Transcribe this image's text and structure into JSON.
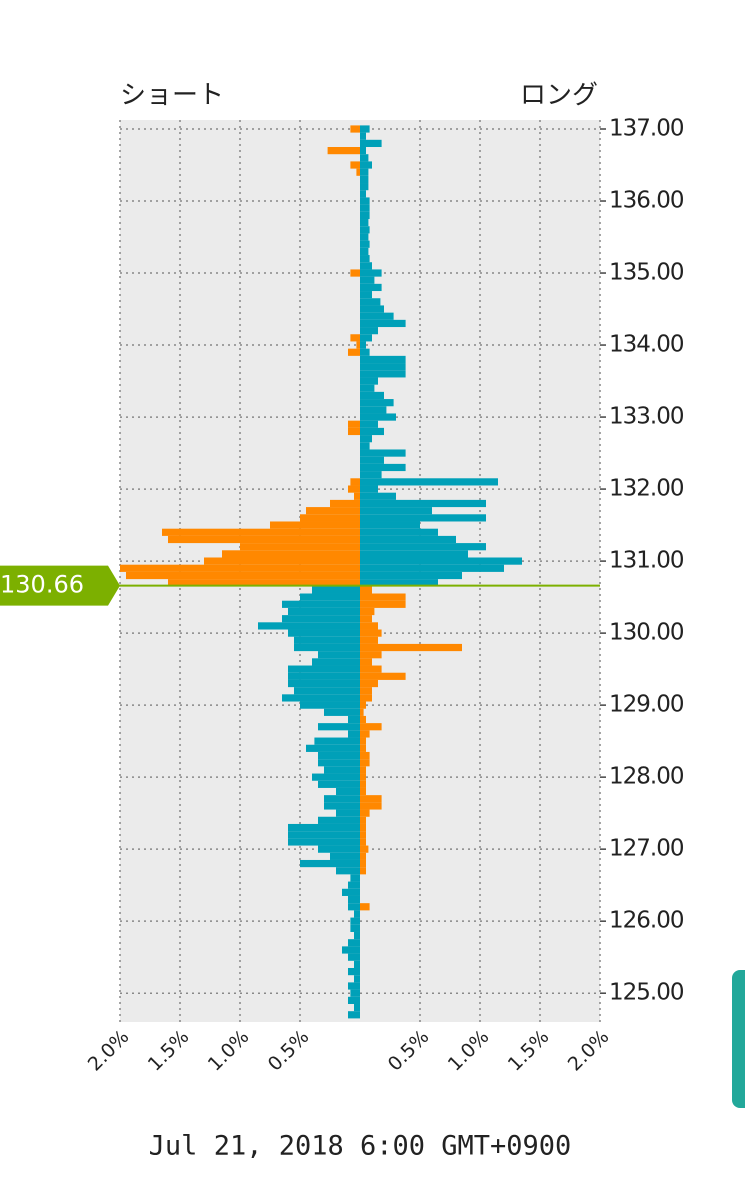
{
  "chart_data": {
    "type": "position-book",
    "left_label": "ショート",
    "right_label": "ロング",
    "footer": "Jul 21, 2018 6:00 GMT+0900",
    "current_price": 130.66,
    "price_colors": {
      "above_short": "#ff8800",
      "above_long": "#00a0b8",
      "below_short": "#00a0b8",
      "below_long": "#ff8800"
    },
    "line_color": "#7cb000",
    "bucket": 0.1,
    "y": [
      137.0,
      136.9,
      136.8,
      136.7,
      136.6,
      136.5,
      136.4,
      136.3,
      136.2,
      136.1,
      136.0,
      135.9,
      135.8,
      135.7,
      135.6,
      135.5,
      135.4,
      135.3,
      135.2,
      135.1,
      135.0,
      134.9,
      134.8,
      134.7,
      134.6,
      134.5,
      134.4,
      134.3,
      134.2,
      134.1,
      134.0,
      133.9,
      133.8,
      133.7,
      133.6,
      133.5,
      133.4,
      133.3,
      133.2,
      133.1,
      133.0,
      132.9,
      132.8,
      132.7,
      132.6,
      132.5,
      132.4,
      132.3,
      132.2,
      132.1,
      132.0,
      131.9,
      131.8,
      131.7,
      131.6,
      131.5,
      131.4,
      131.3,
      131.2,
      131.1,
      131.0,
      130.9,
      130.8,
      130.7,
      130.6,
      130.5,
      130.4,
      130.3,
      130.2,
      130.1,
      130.0,
      129.9,
      129.8,
      129.7,
      129.6,
      129.5,
      129.4,
      129.3,
      129.2,
      129.1,
      129.0,
      128.9,
      128.8,
      128.7,
      128.6,
      128.5,
      128.4,
      128.3,
      128.2,
      128.1,
      128.0,
      127.9,
      127.8,
      127.7,
      127.6,
      127.5,
      127.4,
      127.3,
      127.2,
      127.1,
      127.0,
      126.9,
      126.8,
      126.7,
      126.6,
      126.5,
      126.4,
      126.3,
      126.2,
      126.1,
      126.0,
      125.9,
      125.8,
      125.7,
      125.6,
      125.5,
      125.4,
      125.3,
      125.2,
      125.1,
      125.0,
      124.9,
      124.8,
      124.7
    ],
    "series": [
      {
        "name": "ショート",
        "side": "left",
        "values": [
          0.08,
          0,
          0,
          0.27,
          0,
          0.08,
          0.03,
          0,
          0,
          0,
          0,
          0,
          0,
          0,
          0,
          0,
          0,
          0,
          0,
          0,
          0.08,
          0,
          0,
          0,
          0,
          0,
          0,
          0,
          0,
          0.08,
          0.03,
          0.1,
          0,
          0,
          0,
          0,
          0,
          0,
          0,
          0,
          0,
          0.1,
          0.1,
          0,
          0,
          0,
          0,
          0,
          0,
          0.08,
          0.1,
          0.05,
          0.25,
          0.45,
          0.5,
          0.75,
          1.65,
          1.6,
          1.0,
          1.15,
          1.3,
          2.0,
          1.95,
          1.6,
          0.4,
          0.5,
          0.65,
          0.6,
          0.65,
          0.85,
          0.6,
          0.55,
          0.55,
          0.35,
          0.4,
          0.6,
          0.6,
          0.6,
          0.55,
          0.65,
          0.5,
          0.3,
          0.1,
          0.35,
          0.1,
          0.38,
          0.45,
          0.35,
          0.35,
          0.3,
          0.4,
          0.35,
          0.2,
          0.3,
          0.3,
          0.2,
          0.35,
          0.6,
          0.6,
          0.6,
          0.35,
          0.25,
          0.5,
          0.2,
          0.08,
          0.1,
          0.15,
          0.1,
          0.1,
          0.05,
          0.08,
          0.08,
          0.05,
          0.1,
          0.15,
          0.1,
          0.05,
          0.1,
          0.05,
          0.1,
          0.08,
          0.1,
          0.05,
          0.1
        ]
      },
      {
        "name": "ロング",
        "side": "right",
        "values": [
          0.08,
          0.05,
          0.18,
          0.05,
          0.07,
          0.1,
          0.07,
          0.07,
          0.07,
          0.05,
          0.08,
          0.08,
          0.08,
          0.07,
          0.08,
          0.07,
          0.08,
          0.07,
          0.08,
          0.1,
          0.18,
          0.12,
          0.18,
          0.1,
          0.17,
          0.2,
          0.28,
          0.38,
          0.15,
          0.1,
          0.05,
          0.08,
          0.38,
          0.38,
          0.38,
          0.15,
          0.12,
          0.2,
          0.28,
          0.22,
          0.3,
          0.15,
          0.2,
          0.1,
          0.08,
          0.38,
          0.2,
          0.38,
          0.18,
          1.15,
          0.15,
          0.3,
          1.05,
          0.6,
          1.05,
          0.5,
          0.65,
          0.8,
          1.05,
          0.9,
          1.35,
          1.2,
          0.85,
          0.65,
          0.1,
          0.38,
          0.38,
          0.12,
          0.1,
          0.15,
          0.18,
          0.15,
          0.85,
          0.18,
          0.1,
          0.18,
          0.38,
          0.15,
          0.1,
          0.1,
          0.05,
          0.03,
          0.05,
          0.18,
          0.08,
          0.05,
          0.05,
          0.08,
          0.08,
          0.05,
          0.05,
          0.05,
          0.05,
          0.18,
          0.18,
          0.08,
          0.05,
          0.05,
          0.05,
          0.05,
          0.07,
          0.05,
          0.05,
          0.05,
          0,
          0,
          0,
          0,
          0.08,
          0,
          0,
          0,
          0,
          0,
          0,
          0,
          0,
          0,
          0,
          0,
          0,
          0,
          0,
          0
        ]
      }
    ],
    "xlim": [
      -2,
      2
    ],
    "xticks": [
      {
        "value": -2,
        "label": "2.0%"
      },
      {
        "value": -1.5,
        "label": "1.5%"
      },
      {
        "value": -1,
        "label": "1.0%"
      },
      {
        "value": -0.5,
        "label": "0.5%"
      },
      {
        "value": 0.5,
        "label": "0.5%"
      },
      {
        "value": 1,
        "label": "1.0%"
      },
      {
        "value": 1.5,
        "label": "1.5%"
      },
      {
        "value": 2,
        "label": "2.0%"
      }
    ],
    "ylim": [
      124.6,
      137.125
    ],
    "yticks": [
      {
        "value": 125,
        "label": "125.00"
      },
      {
        "value": 126,
        "label": "126.00"
      },
      {
        "value": 127,
        "label": "127.00"
      },
      {
        "value": 128,
        "label": "128.00"
      },
      {
        "value": 129,
        "label": "129.00"
      },
      {
        "value": 130,
        "label": "130.00"
      },
      {
        "value": 131,
        "label": "131.00"
      },
      {
        "value": 132,
        "label": "132.00"
      },
      {
        "value": 133,
        "label": "133.00"
      },
      {
        "value": 134,
        "label": "134.00"
      },
      {
        "value": 135,
        "label": "135.00"
      },
      {
        "value": 136,
        "label": "136.00"
      },
      {
        "value": 137,
        "label": "137.00"
      }
    ],
    "grid": true
  }
}
